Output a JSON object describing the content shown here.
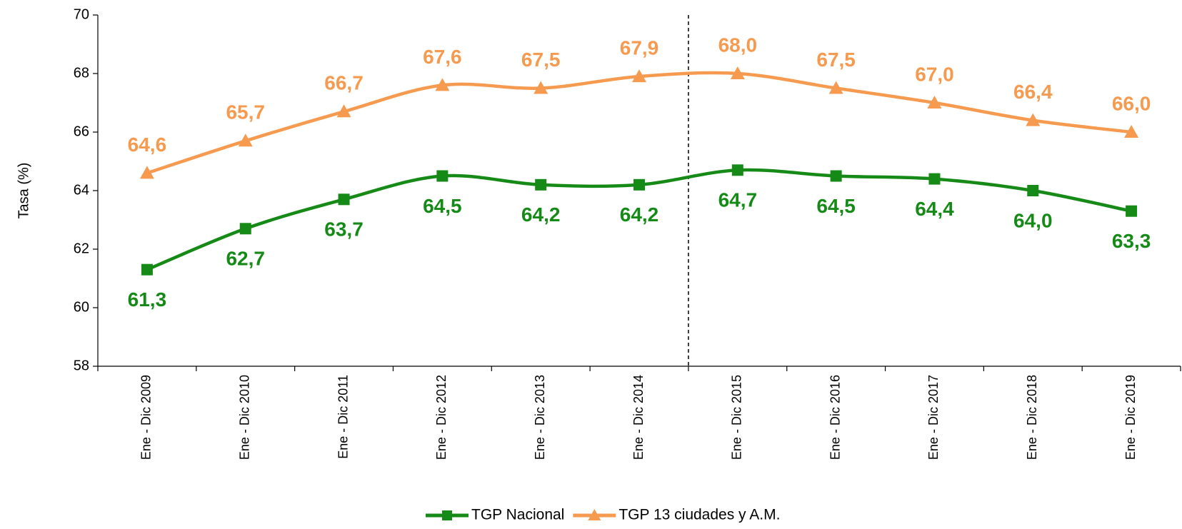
{
  "chart_data": {
    "type": "line",
    "ylabel": "Tasa (%)",
    "categories": [
      "Ene - Dic 2009",
      "Ene - Dic 2010",
      "Ene - Dic 2011",
      "Ene - Dic 2012",
      "Ene - Dic 2013",
      "Ene - Dic 2014",
      "Ene - Dic 2015",
      "Ene - Dic 2016",
      "Ene - Dic 2017",
      "Ene - Dic 2018",
      "Ene - Dic 2019"
    ],
    "series": [
      {
        "name": "TGP Nacional",
        "color": "#168a16",
        "marker": "square",
        "values": [
          61.3,
          62.7,
          63.7,
          64.5,
          64.2,
          64.2,
          64.7,
          64.5,
          64.4,
          64.0,
          63.3
        ],
        "value_labels": [
          "61,3",
          "62,7",
          "63,7",
          "64,5",
          "64,2",
          "64,2",
          "64,7",
          "64,5",
          "64,4",
          "64,0",
          "63,3"
        ]
      },
      {
        "name": "TGP 13 ciudades y A.M.",
        "color": "#f59a4f",
        "marker": "triangle",
        "values": [
          64.6,
          65.7,
          66.7,
          67.6,
          67.5,
          67.9,
          68.0,
          67.5,
          67.0,
          66.4,
          66.0
        ],
        "value_labels": [
          "64,6",
          "65,7",
          "66,7",
          "67,6",
          "67,5",
          "67,9",
          "68,0",
          "67,5",
          "67,0",
          "66,4",
          "66,0"
        ]
      }
    ],
    "ylim": [
      58,
      70
    ],
    "yticks": [
      58,
      60,
      62,
      64,
      66,
      68,
      70
    ],
    "legend": "bottom"
  }
}
